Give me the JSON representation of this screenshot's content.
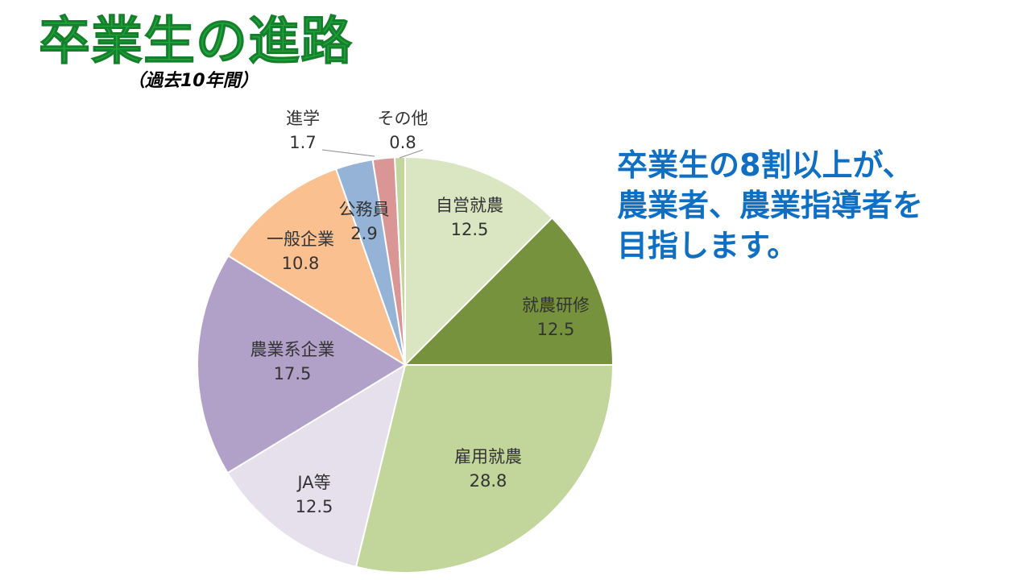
{
  "title": "卒業生の進路",
  "subtitle": "（過去10年間）",
  "message": {
    "line1": "卒業生の8割以上が、",
    "line2": "農業者、農業指導者を",
    "line3": "目指します。"
  },
  "colors": {
    "title": "#1fa33a",
    "message": "#0e6fc3"
  },
  "chart_data": {
    "type": "pie",
    "title": "卒業生の進路",
    "subtitle": "（過去10年間）",
    "categories": [
      "自営就農",
      "就農研修",
      "雇用就農",
      "JA等",
      "農業系企業",
      "一般企業",
      "公務員",
      "進学",
      "その他"
    ],
    "values": [
      12.5,
      12.5,
      28.8,
      12.5,
      17.5,
      10.8,
      2.9,
      1.7,
      0.8
    ],
    "colors": [
      "#d9e6c1",
      "#76923c",
      "#c2d69b",
      "#e5e0ec",
      "#b1a0c7",
      "#fac090",
      "#95b3d7",
      "#d99694",
      "#c3d69b"
    ],
    "start_angle": "12 o'clock",
    "direction": "clockwise",
    "legend": "none",
    "data_labels": "category name and value"
  }
}
